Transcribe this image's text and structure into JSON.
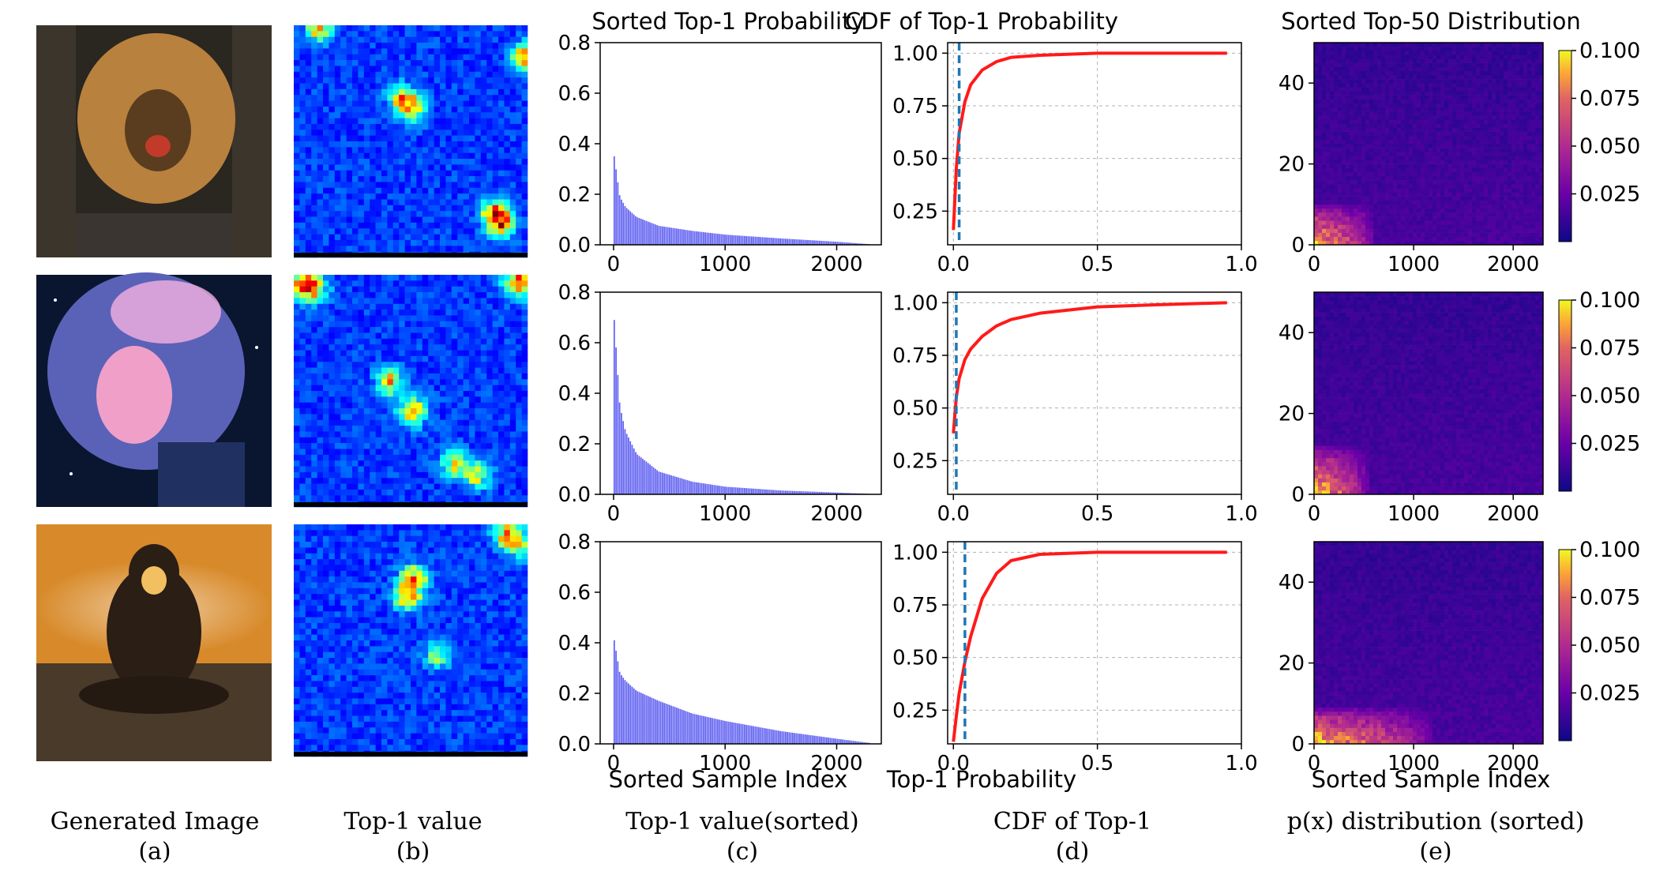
{
  "figure": {
    "captions": [
      {
        "label": "Generated Image",
        "letter": "(a)"
      },
      {
        "label": "Top-1 value",
        "letter": "(b)"
      },
      {
        "label": "Top-1 value(sorted)",
        "letter": "(c)"
      },
      {
        "label": "CDF of Top-1",
        "letter": "(d)"
      },
      {
        "label": "p(x) distribution (sorted)",
        "letter": "(e)"
      }
    ],
    "rows": [
      {
        "subject": "lion",
        "colors": {
          "sky": "#2a2620",
          "main": "#b9813e",
          "accent": "#5a3d1f",
          "ground": "#3a3530"
        }
      },
      {
        "subject": "anime girl",
        "colors": {
          "sky": "#0a1530",
          "main": "#5a62b8",
          "accent": "#f0a0c8",
          "ground": "#203060"
        }
      },
      {
        "subject": "chimpanzee",
        "colors": {
          "sky": "#d88a2a",
          "main": "#2a1e15",
          "accent": "#f2c060",
          "ground": "#4a3a2a"
        }
      }
    ]
  },
  "chart_data": [
    {
      "type": "heatmap",
      "panel": "b",
      "title": "",
      "grid_size": 40,
      "colormap": "jet",
      "description_ticks": false,
      "hotspots_per_row": [
        [
          [
            18,
            12,
            0.6
          ],
          [
            20,
            14,
            0.5
          ],
          [
            34,
            32,
            0.7
          ],
          [
            35,
            34,
            0.6
          ],
          [
            4,
            0,
            0.6
          ],
          [
            39,
            5,
            0.7
          ]
        ],
        [
          [
            1,
            1,
            0.7
          ],
          [
            3,
            2,
            0.6
          ],
          [
            38,
            1,
            0.8
          ],
          [
            16,
            18,
            0.6
          ],
          [
            20,
            23,
            0.7
          ],
          [
            27,
            32,
            0.5
          ],
          [
            31,
            34,
            0.5
          ]
        ],
        [
          [
            20,
            9,
            0.7
          ],
          [
            19,
            12,
            0.6
          ],
          [
            36,
            1,
            0.6
          ],
          [
            38,
            3,
            0.5
          ],
          [
            24,
            22,
            0.4
          ]
        ]
      ]
    },
    {
      "type": "bar",
      "panel": "c",
      "title": "Sorted Top-1 Probability",
      "xlabel": "Sorted Sample Index",
      "ylabel": "",
      "xlim": [
        -120,
        2400
      ],
      "ylim": [
        0,
        0.8
      ],
      "xticks": [
        0,
        1000,
        2000
      ],
      "yticks": [
        0.0,
        0.2,
        0.4,
        0.6,
        0.8
      ],
      "ytick_labels": [
        "0.0",
        "0.2",
        "0.4",
        "0.6",
        "0.8"
      ],
      "n_samples": 2304,
      "series": [
        {
          "name": "row1",
          "color": "#3333ee",
          "x": [
            0,
            50,
            100,
            200,
            400,
            700,
            1000,
            1500,
            2000,
            2300
          ],
          "values": [
            0.35,
            0.19,
            0.15,
            0.11,
            0.075,
            0.055,
            0.04,
            0.025,
            0.012,
            0.002
          ]
        },
        {
          "name": "row2",
          "color": "#3333ee",
          "x": [
            0,
            50,
            100,
            200,
            400,
            700,
            1000,
            1500,
            2000,
            2300
          ],
          "values": [
            0.69,
            0.35,
            0.25,
            0.16,
            0.09,
            0.05,
            0.03,
            0.015,
            0.007,
            0.002
          ]
        },
        {
          "name": "row3",
          "color": "#3333ee",
          "x": [
            0,
            50,
            100,
            200,
            400,
            700,
            1000,
            1500,
            2000,
            2300
          ],
          "values": [
            0.41,
            0.28,
            0.25,
            0.21,
            0.17,
            0.12,
            0.09,
            0.05,
            0.02,
            0.003
          ]
        }
      ]
    },
    {
      "type": "line",
      "panel": "d",
      "title": "CDF of Top-1 Probability",
      "xlabel": "Top-1 Probability",
      "ylabel": "",
      "xlim": [
        -0.02,
        1.0
      ],
      "ylim": [
        0.09,
        1.05
      ],
      "xticks": [
        0.0,
        0.5,
        1.0
      ],
      "xtick_labels": [
        "0.0",
        "0.5",
        "1.0"
      ],
      "yticks": [
        0.25,
        0.5,
        0.75,
        1.0
      ],
      "ytick_labels": [
        "0.25",
        "0.50",
        "0.75",
        "1.00"
      ],
      "grid": true,
      "series": [
        {
          "name": "row1",
          "color": "#ff1a1a",
          "x": [
            0.0,
            0.01,
            0.02,
            0.04,
            0.06,
            0.1,
            0.15,
            0.2,
            0.3,
            0.5,
            0.7,
            0.95
          ],
          "values": [
            0.16,
            0.45,
            0.62,
            0.77,
            0.85,
            0.92,
            0.96,
            0.98,
            0.99,
            1.0,
            1.0,
            1.0
          ],
          "vline": 0.02
        },
        {
          "name": "row2",
          "color": "#ff1a1a",
          "x": [
            0.0,
            0.01,
            0.02,
            0.04,
            0.06,
            0.1,
            0.15,
            0.2,
            0.3,
            0.5,
            0.7,
            0.95
          ],
          "values": [
            0.38,
            0.55,
            0.64,
            0.73,
            0.78,
            0.84,
            0.89,
            0.92,
            0.95,
            0.98,
            0.99,
            1.0
          ],
          "vline": 0.01
        },
        {
          "name": "row3",
          "color": "#ff1a1a",
          "x": [
            0.0,
            0.01,
            0.02,
            0.04,
            0.06,
            0.1,
            0.15,
            0.2,
            0.3,
            0.5,
            0.7,
            0.95
          ],
          "values": [
            0.1,
            0.22,
            0.33,
            0.48,
            0.6,
            0.78,
            0.9,
            0.96,
            0.99,
            1.0,
            1.0,
            1.0
          ],
          "vline": 0.04
        }
      ],
      "vline_color": "#1f77b4"
    },
    {
      "type": "heatmap",
      "panel": "e",
      "title": "Sorted Top-50 Distribution",
      "xlabel": "Sorted Sample Index",
      "ylabel": "",
      "xlim": [
        0,
        2300
      ],
      "ylim": [
        0,
        50
      ],
      "xticks": [
        0,
        1000,
        2000
      ],
      "yticks": [
        0,
        20,
        40
      ],
      "colormap": "plasma",
      "colorbar": {
        "min": 0.0,
        "max": 0.1,
        "ticks": [
          0.025,
          0.05,
          0.075,
          0.1
        ],
        "tick_labels": [
          "0.025",
          "0.050",
          "0.075",
          "0.100"
        ]
      },
      "hot_extent_per_row": [
        {
          "x_max": 600,
          "y_max": 10
        },
        {
          "x_max": 550,
          "y_max": 12
        },
        {
          "x_max": 1200,
          "y_max": 9
        }
      ]
    }
  ]
}
